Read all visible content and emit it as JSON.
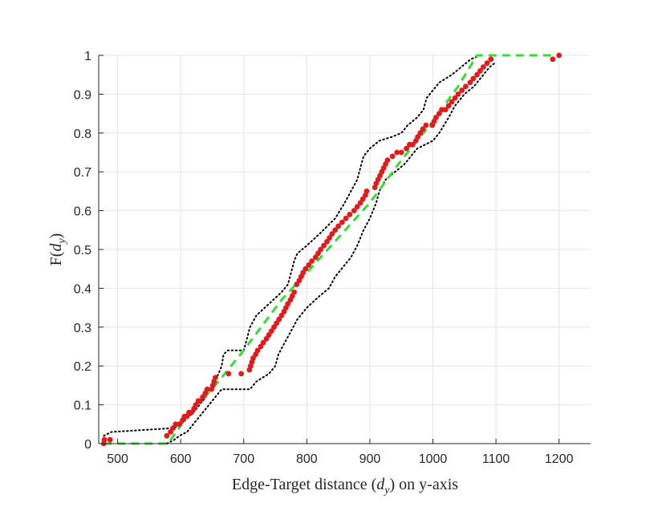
{
  "chart_data": {
    "type": "scatter",
    "title": "",
    "xlabel": "Edge-Target distance ($d_y$) on y-axis",
    "xlabel_parts": {
      "pre": "Edge-Target distance (",
      "var": "d",
      "sub": "y",
      "post": ") on y-axis"
    },
    "ylabel": "F($d_y$)",
    "ylabel_parts": {
      "pre": "F(",
      "var": "d",
      "sub": "y",
      "post": ")"
    },
    "xlim": [
      470,
      1250
    ],
    "ylim": [
      0,
      1
    ],
    "xticks": [
      500,
      600,
      700,
      800,
      900,
      1000,
      1100,
      1200
    ],
    "yticks": [
      0,
      0.1,
      0.2,
      0.3,
      0.4,
      0.5,
      0.6,
      0.7,
      0.8,
      0.9,
      1
    ],
    "grid": true,
    "legend": "none",
    "series": [
      {
        "role": "empirical",
        "style": "points",
        "color": "#e31a1c",
        "points": [
          [
            478,
            0.0
          ],
          [
            479,
            0.01
          ],
          [
            488,
            0.01
          ],
          [
            578,
            0.02
          ],
          [
            584,
            0.03
          ],
          [
            588,
            0.04
          ],
          [
            592,
            0.05
          ],
          [
            598,
            0.05
          ],
          [
            603,
            0.06
          ],
          [
            606,
            0.07
          ],
          [
            610,
            0.07
          ],
          [
            613,
            0.08
          ],
          [
            617,
            0.08
          ],
          [
            621,
            0.09
          ],
          [
            624,
            0.1
          ],
          [
            628,
            0.11
          ],
          [
            631,
            0.11
          ],
          [
            635,
            0.12
          ],
          [
            639,
            0.13
          ],
          [
            642,
            0.14
          ],
          [
            649,
            0.14
          ],
          [
            651,
            0.15
          ],
          [
            653,
            0.16
          ],
          [
            655,
            0.17
          ],
          [
            676,
            0.18
          ],
          [
            696,
            0.18
          ],
          [
            709,
            0.19
          ],
          [
            711,
            0.2
          ],
          [
            713,
            0.21
          ],
          [
            715,
            0.22
          ],
          [
            719,
            0.23
          ],
          [
            722,
            0.24
          ],
          [
            727,
            0.25
          ],
          [
            731,
            0.26
          ],
          [
            736,
            0.27
          ],
          [
            740,
            0.28
          ],
          [
            744,
            0.29
          ],
          [
            748,
            0.3
          ],
          [
            752,
            0.31
          ],
          [
            756,
            0.32
          ],
          [
            760,
            0.33
          ],
          [
            764,
            0.34
          ],
          [
            767,
            0.35
          ],
          [
            770,
            0.36
          ],
          [
            774,
            0.37
          ],
          [
            777,
            0.38
          ],
          [
            780,
            0.39
          ],
          [
            784,
            0.41
          ],
          [
            788,
            0.42
          ],
          [
            791,
            0.43
          ],
          [
            794,
            0.44
          ],
          [
            798,
            0.45
          ],
          [
            803,
            0.46
          ],
          [
            808,
            0.47
          ],
          [
            814,
            0.48
          ],
          [
            818,
            0.49
          ],
          [
            822,
            0.5
          ],
          [
            827,
            0.51
          ],
          [
            832,
            0.52
          ],
          [
            836,
            0.53
          ],
          [
            840,
            0.54
          ],
          [
            845,
            0.55
          ],
          [
            850,
            0.56
          ],
          [
            856,
            0.57
          ],
          [
            862,
            0.58
          ],
          [
            868,
            0.59
          ],
          [
            875,
            0.6
          ],
          [
            880,
            0.61
          ],
          [
            885,
            0.62
          ],
          [
            889,
            0.63
          ],
          [
            893,
            0.64
          ],
          [
            895,
            0.65
          ],
          [
            908,
            0.66
          ],
          [
            910,
            0.67
          ],
          [
            913,
            0.68
          ],
          [
            916,
            0.69
          ],
          [
            919,
            0.7
          ],
          [
            922,
            0.71
          ],
          [
            925,
            0.72
          ],
          [
            928,
            0.73
          ],
          [
            936,
            0.74
          ],
          [
            943,
            0.75
          ],
          [
            950,
            0.75
          ],
          [
            958,
            0.76
          ],
          [
            963,
            0.77
          ],
          [
            968,
            0.77
          ],
          [
            973,
            0.78
          ],
          [
            976,
            0.79
          ],
          [
            980,
            0.8
          ],
          [
            984,
            0.81
          ],
          [
            989,
            0.82
          ],
          [
            999,
            0.82
          ],
          [
            1002,
            0.83
          ],
          [
            1005,
            0.84
          ],
          [
            1010,
            0.85
          ],
          [
            1014,
            0.86
          ],
          [
            1020,
            0.86
          ],
          [
            1025,
            0.87
          ],
          [
            1030,
            0.88
          ],
          [
            1035,
            0.89
          ],
          [
            1040,
            0.9
          ],
          [
            1046,
            0.91
          ],
          [
            1052,
            0.92
          ],
          [
            1059,
            0.93
          ],
          [
            1064,
            0.94
          ],
          [
            1070,
            0.95
          ],
          [
            1075,
            0.96
          ],
          [
            1080,
            0.97
          ],
          [
            1086,
            0.98
          ],
          [
            1092,
            0.99
          ],
          [
            1190,
            0.99
          ],
          [
            1200,
            1.0
          ]
        ]
      },
      {
        "role": "fitted-cdf",
        "style": "dashed-line",
        "color": "#33dd33",
        "points": [
          [
            478,
            0.0
          ],
          [
            580,
            0.0
          ],
          [
            610,
            0.07
          ],
          [
            660,
            0.16
          ],
          [
            700,
            0.24
          ],
          [
            760,
            0.37
          ],
          [
            800,
            0.44
          ],
          [
            850,
            0.53
          ],
          [
            900,
            0.62
          ],
          [
            950,
            0.73
          ],
          [
            1000,
            0.83
          ],
          [
            1040,
            0.92
          ],
          [
            1070,
            1.0
          ],
          [
            1200,
            1.0
          ]
        ]
      },
      {
        "role": "upper-band",
        "style": "dotted-line",
        "color": "#000000",
        "points": [
          [
            478,
            0.02
          ],
          [
            490,
            0.03
          ],
          [
            590,
            0.04
          ],
          [
            600,
            0.05
          ],
          [
            620,
            0.08
          ],
          [
            640,
            0.12
          ],
          [
            650,
            0.15
          ],
          [
            660,
            0.18
          ],
          [
            665,
            0.2
          ],
          [
            668,
            0.23
          ],
          [
            675,
            0.24
          ],
          [
            700,
            0.24
          ],
          [
            705,
            0.27
          ],
          [
            710,
            0.3
          ],
          [
            720,
            0.33
          ],
          [
            740,
            0.36
          ],
          [
            760,
            0.39
          ],
          [
            770,
            0.41
          ],
          [
            775,
            0.44
          ],
          [
            780,
            0.47
          ],
          [
            785,
            0.49
          ],
          [
            800,
            0.51
          ],
          [
            820,
            0.54
          ],
          [
            845,
            0.58
          ],
          [
            860,
            0.62
          ],
          [
            870,
            0.65
          ],
          [
            880,
            0.68
          ],
          [
            885,
            0.71
          ],
          [
            890,
            0.74
          ],
          [
            900,
            0.76
          ],
          [
            915,
            0.78
          ],
          [
            935,
            0.79
          ],
          [
            950,
            0.8
          ],
          [
            960,
            0.82
          ],
          [
            975,
            0.84
          ],
          [
            985,
            0.86
          ],
          [
            990,
            0.89
          ],
          [
            1000,
            0.91
          ],
          [
            1010,
            0.93
          ],
          [
            1030,
            0.95
          ],
          [
            1045,
            0.97
          ],
          [
            1060,
            0.99
          ],
          [
            1075,
            1.0
          ]
        ]
      },
      {
        "role": "lower-band",
        "style": "dotted-line",
        "color": "#000000",
        "points": [
          [
            578,
            0.0
          ],
          [
            590,
            0.01
          ],
          [
            598,
            0.02
          ],
          [
            610,
            0.03
          ],
          [
            625,
            0.06
          ],
          [
            635,
            0.08
          ],
          [
            645,
            0.1
          ],
          [
            655,
            0.12
          ],
          [
            665,
            0.14
          ],
          [
            710,
            0.14
          ],
          [
            720,
            0.16
          ],
          [
            740,
            0.18
          ],
          [
            750,
            0.2
          ],
          [
            755,
            0.23
          ],
          [
            765,
            0.26
          ],
          [
            775,
            0.29
          ],
          [
            785,
            0.32
          ],
          [
            800,
            0.35
          ],
          [
            820,
            0.38
          ],
          [
            835,
            0.4
          ],
          [
            845,
            0.43
          ],
          [
            855,
            0.45
          ],
          [
            870,
            0.48
          ],
          [
            880,
            0.51
          ],
          [
            890,
            0.55
          ],
          [
            900,
            0.58
          ],
          [
            910,
            0.62
          ],
          [
            915,
            0.65
          ],
          [
            925,
            0.68
          ],
          [
            940,
            0.7
          ],
          [
            955,
            0.72
          ],
          [
            965,
            0.74
          ],
          [
            975,
            0.76
          ],
          [
            1000,
            0.78
          ],
          [
            1010,
            0.8
          ],
          [
            1025,
            0.84
          ],
          [
            1035,
            0.87
          ],
          [
            1050,
            0.9
          ],
          [
            1065,
            0.92
          ],
          [
            1080,
            0.95
          ],
          [
            1090,
            0.97
          ],
          [
            1098,
            0.98
          ]
        ]
      }
    ]
  }
}
